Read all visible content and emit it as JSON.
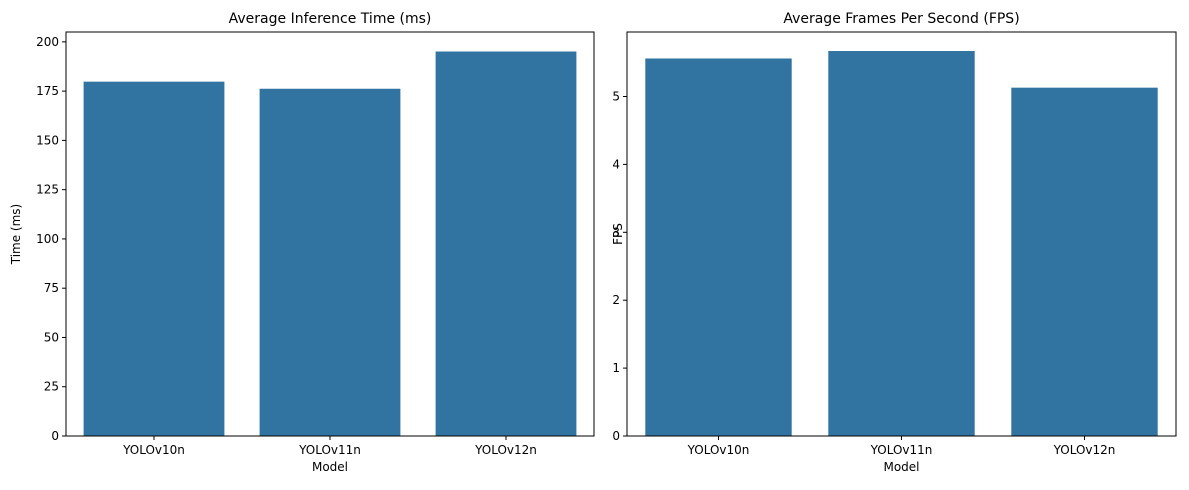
{
  "chart_data": [
    {
      "type": "bar",
      "title": "Average Inference Time (ms)",
      "xlabel": "Model",
      "ylabel": "Time (ms)",
      "categories": [
        "YOLOv10n",
        "YOLOv11n",
        "YOLOv12n"
      ],
      "values": [
        179.8,
        176.2,
        195.1
      ],
      "ylim": [
        0,
        205
      ],
      "yticks": [
        0,
        25,
        50,
        75,
        100,
        125,
        150,
        175,
        200
      ],
      "color": "#3274a1",
      "grid": false
    },
    {
      "type": "bar",
      "title": "Average Frames Per Second (FPS)",
      "xlabel": "Model",
      "ylabel": "FPS",
      "categories": [
        "YOLOv10n",
        "YOLOv11n",
        "YOLOv12n"
      ],
      "values": [
        5.56,
        5.67,
        5.13
      ],
      "ylim": [
        0,
        5.95
      ],
      "yticks": [
        0,
        1,
        2,
        3,
        4,
        5
      ],
      "color": "#3274a1",
      "grid": false
    }
  ]
}
